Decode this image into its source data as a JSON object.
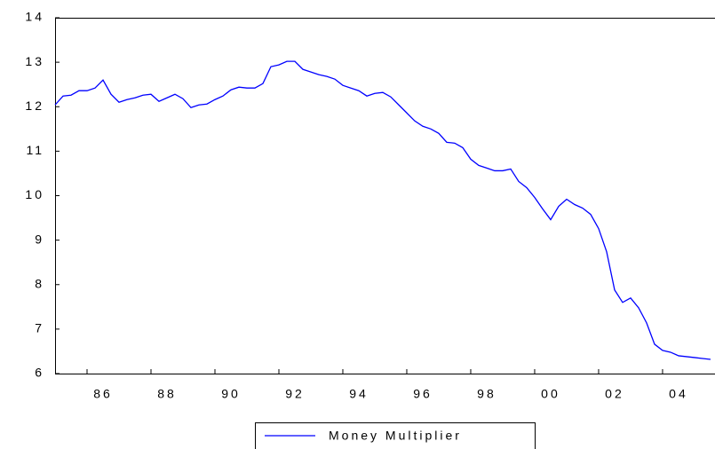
{
  "chart_data": {
    "type": "line",
    "x": [
      1985,
      1985.25,
      1985.5,
      1985.75,
      1986,
      1986.25,
      1986.5,
      1986.75,
      1987,
      1987.25,
      1987.5,
      1987.75,
      1988,
      1988.25,
      1988.5,
      1988.75,
      1989,
      1989.25,
      1989.5,
      1989.75,
      1990,
      1990.25,
      1990.5,
      1990.75,
      1991,
      1991.25,
      1991.5,
      1991.75,
      1992,
      1992.25,
      1992.5,
      1992.75,
      1993,
      1993.25,
      1993.5,
      1993.75,
      1994,
      1994.25,
      1994.5,
      1994.75,
      1995,
      1995.25,
      1995.5,
      1995.75,
      1996,
      1996.25,
      1996.5,
      1996.75,
      1997,
      1997.25,
      1997.5,
      1997.75,
      1998,
      1998.25,
      1998.5,
      1998.75,
      1999,
      1999.25,
      1999.5,
      1999.75,
      2000,
      2000.25,
      2000.5,
      2000.75,
      2001,
      2001.25,
      2001.5,
      2001.75,
      2002,
      2002.25,
      2002.5,
      2002.75,
      2003,
      2003.25,
      2003.5,
      2003.75,
      2004,
      2004.25,
      2004.5,
      2004.75,
      2005,
      2005.25,
      2005.5
    ],
    "series": [
      {
        "name": "Money Multiplier",
        "color": "#0000ff",
        "values": [
          12.04,
          12.24,
          12.26,
          12.36,
          12.36,
          12.42,
          12.6,
          12.28,
          12.1,
          12.16,
          12.2,
          12.26,
          12.28,
          12.12,
          12.2,
          12.28,
          12.18,
          11.98,
          12.04,
          12.06,
          12.16,
          12.24,
          12.38,
          12.44,
          12.42,
          12.42,
          12.52,
          12.9,
          12.94,
          13.02,
          13.02,
          12.84,
          12.78,
          12.72,
          12.68,
          12.62,
          12.48,
          12.42,
          12.36,
          12.24,
          12.3,
          12.32,
          12.22,
          12.04,
          11.86,
          11.68,
          11.56,
          11.5,
          11.4,
          11.2,
          11.18,
          11.08,
          10.82,
          10.68,
          10.62,
          10.56,
          10.56,
          10.6,
          10.32,
          10.18,
          9.96,
          9.7,
          9.46,
          9.76,
          9.92,
          9.8,
          9.72,
          9.58,
          9.26,
          8.74,
          7.88,
          7.6,
          7.7,
          7.48,
          7.14,
          6.66,
          6.52,
          6.48,
          6.4,
          6.38,
          6.36,
          6.34,
          6.32
        ]
      }
    ],
    "xlim": [
      1985,
      2005.64
    ],
    "xticks": [
      {
        "value": 1986,
        "label": "86"
      },
      {
        "value": 1988,
        "label": "88"
      },
      {
        "value": 1990,
        "label": "90"
      },
      {
        "value": 1992,
        "label": "92"
      },
      {
        "value": 1994,
        "label": "94"
      },
      {
        "value": 1996,
        "label": "96"
      },
      {
        "value": 1998,
        "label": "98"
      },
      {
        "value": 2000,
        "label": "00"
      },
      {
        "value": 2002,
        "label": "02"
      },
      {
        "value": 2004,
        "label": "04"
      }
    ],
    "ylim": [
      6,
      14
    ],
    "yticks": [
      6,
      7,
      8,
      9,
      10,
      11,
      12,
      13,
      14
    ],
    "grid": false
  }
}
